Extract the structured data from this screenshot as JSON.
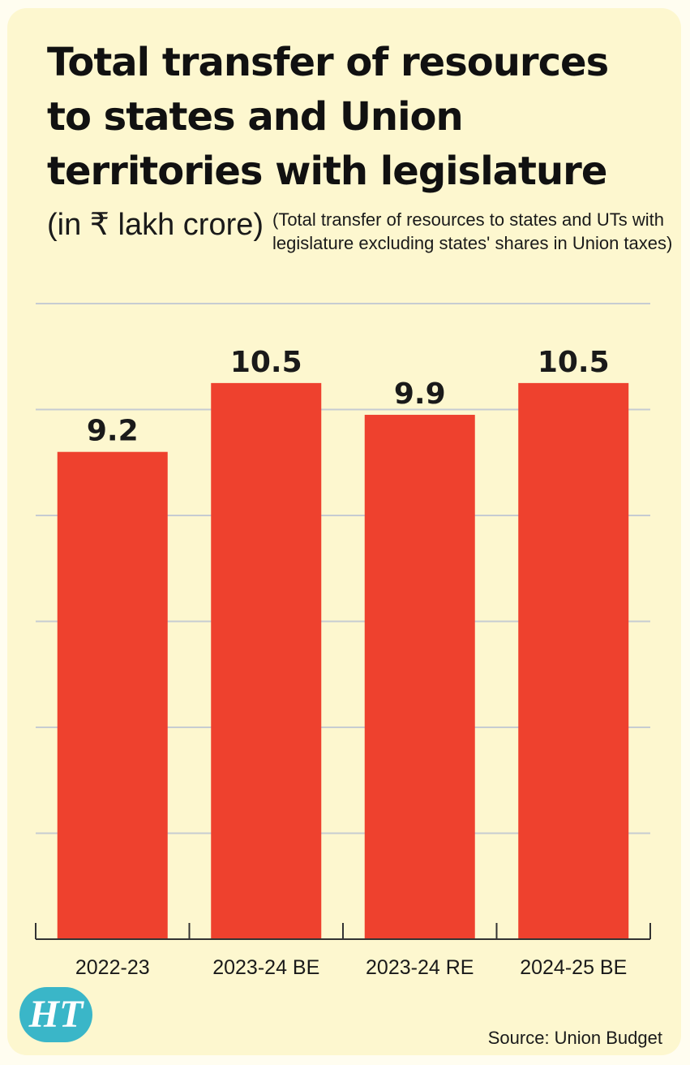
{
  "title": "Total transfer of resources to states and Union territories with legislature",
  "subtitle_unit": "(in ₹ lakh crore)",
  "subtitle_note": "(Total transfer of resources to states and UTs with legislature excluding states' shares in Union taxes)",
  "source": "Source: Union Budget",
  "logo_text": "HT",
  "chart_data": {
    "type": "bar",
    "categories": [
      "2022-23",
      "2023-24 BE",
      "2023-24 RE",
      "2024-25 BE"
    ],
    "values": [
      9.2,
      10.5,
      9.9,
      10.5
    ],
    "data_labels": [
      "9.2",
      "10.5",
      "9.9",
      "10.5"
    ],
    "ylim": [
      0,
      12
    ],
    "grid": true,
    "xlabel": "",
    "ylabel": ""
  },
  "colors": {
    "bar": "#ee412e",
    "background": "#fdf7cf",
    "grid": "#c6ccd2",
    "axis": "#333333",
    "logo": "#3ab6c8"
  }
}
